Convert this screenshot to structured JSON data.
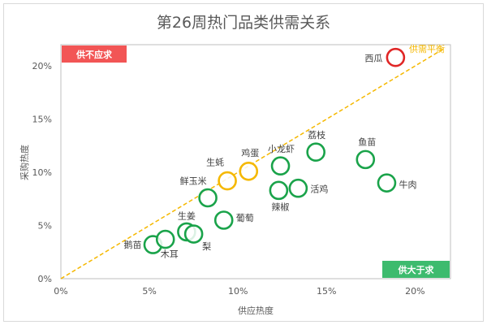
{
  "chart_data": {
    "type": "scatter",
    "title": "第26周热门品类供需关系",
    "xlabel": "供应热度",
    "ylabel": "采购热度",
    "xlim": [
      0,
      22
    ],
    "ylim": [
      0,
      22
    ],
    "x_ticks": [
      "0%",
      "5%",
      "10%",
      "15%",
      "20%"
    ],
    "x_tick_values": [
      0,
      5,
      10,
      15,
      20
    ],
    "y_ticks": [
      "0%",
      "5%",
      "10%",
      "15%",
      "20%"
    ],
    "y_tick_values": [
      0,
      5,
      10,
      15,
      20
    ],
    "grid": false,
    "reference_line": {
      "label": "供需平衡",
      "from": [
        0,
        0
      ],
      "to": [
        21.7,
        21.7
      ],
      "color": "#f5b800",
      "style": "dashed"
    },
    "quadrant_badges": {
      "top_left": {
        "label": "供不应求",
        "color": "#f25555"
      },
      "bottom_right": {
        "label": "供大于求",
        "color": "#3dbb6e"
      }
    },
    "points": [
      {
        "name": "西瓜",
        "x": 18.9,
        "y": 20.8,
        "color": "#e02626"
      },
      {
        "name": "生蚝",
        "x": 9.4,
        "y": 9.2,
        "color": "#f5b800"
      },
      {
        "name": "鸡蛋",
        "x": 10.6,
        "y": 10.1,
        "color": "#f5b800"
      },
      {
        "name": "鲜玉米",
        "x": 8.3,
        "y": 7.6,
        "color": "#1aa34a"
      },
      {
        "name": "小龙虾",
        "x": 12.4,
        "y": 10.6,
        "color": "#1aa34a"
      },
      {
        "name": "荔枝",
        "x": 14.4,
        "y": 11.9,
        "color": "#1aa34a"
      },
      {
        "name": "鱼苗",
        "x": 17.2,
        "y": 11.2,
        "color": "#1aa34a"
      },
      {
        "name": "牛肉",
        "x": 18.4,
        "y": 9.0,
        "color": "#1aa34a"
      },
      {
        "name": "辣椒",
        "x": 12.3,
        "y": 8.3,
        "color": "#1aa34a"
      },
      {
        "name": "活鸡",
        "x": 13.4,
        "y": 8.5,
        "color": "#1aa34a"
      },
      {
        "name": "葡萄",
        "x": 9.2,
        "y": 5.5,
        "color": "#1aa34a"
      },
      {
        "name": "生姜",
        "x": 7.1,
        "y": 4.4,
        "color": "#1aa34a"
      },
      {
        "name": "梨",
        "x": 7.5,
        "y": 4.2,
        "color": "#1aa34a"
      },
      {
        "name": "鹅苗",
        "x": 5.2,
        "y": 3.2,
        "color": "#1aa34a"
      },
      {
        "name": "木耳",
        "x": 5.9,
        "y": 3.7,
        "color": "#1aa34a"
      }
    ]
  }
}
